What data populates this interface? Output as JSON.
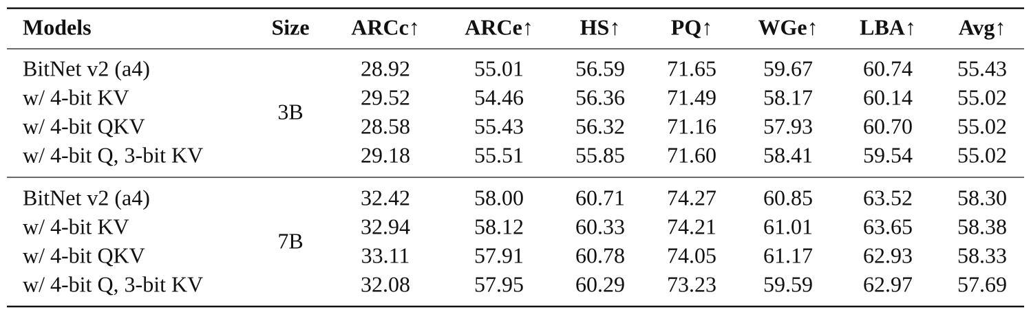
{
  "table": {
    "header": [
      "Models",
      "Size",
      "ARCc↑",
      "ARCe↑",
      "HS↑",
      "PQ↑",
      "WGe↑",
      "LBA↑",
      "Avg↑"
    ],
    "groups": [
      {
        "size": "3B",
        "rows": [
          [
            "BitNet v2 (a4)",
            "28.92",
            "55.01",
            "56.59",
            "71.65",
            "59.67",
            "60.74",
            "55.43"
          ],
          [
            "w/ 4-bit KV",
            "29.52",
            "54.46",
            "56.36",
            "71.49",
            "58.17",
            "60.14",
            "55.02"
          ],
          [
            "w/ 4-bit QKV",
            "28.58",
            "55.43",
            "56.32",
            "71.16",
            "57.93",
            "60.70",
            "55.02"
          ],
          [
            "w/ 4-bit Q, 3-bit KV",
            "29.18",
            "55.51",
            "55.85",
            "71.60",
            "58.41",
            "59.54",
            "55.02"
          ]
        ]
      },
      {
        "size": "7B",
        "rows": [
          [
            "BitNet v2 (a4)",
            "32.42",
            "58.00",
            "60.71",
            "74.27",
            "60.85",
            "63.52",
            "58.30"
          ],
          [
            "w/ 4-bit KV",
            "32.94",
            "58.12",
            "60.33",
            "74.21",
            "61.01",
            "63.65",
            "58.38"
          ],
          [
            "w/ 4-bit QKV",
            "33.11",
            "57.91",
            "60.78",
            "74.05",
            "61.17",
            "62.93",
            "58.33"
          ],
          [
            "w/ 4-bit Q, 3-bit KV",
            "32.08",
            "57.95",
            "60.29",
            "73.23",
            "59.59",
            "62.97",
            "57.69"
          ]
        ]
      }
    ]
  }
}
